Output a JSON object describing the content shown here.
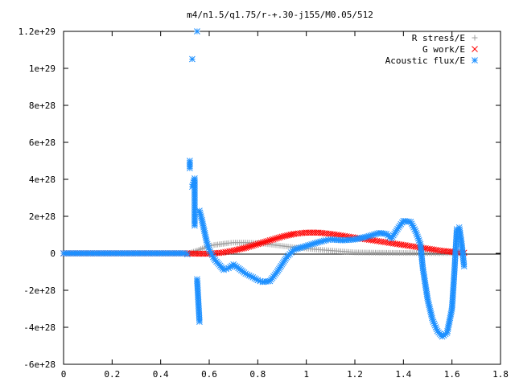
{
  "chart_data": {
    "type": "scatter",
    "title": "m4/n1.5/q1.75/r-+.30-j155/M0.05/512",
    "xlabel": "",
    "ylabel": "",
    "xlim": [
      0,
      1.8
    ],
    "ylim": [
      -6e+28,
      1.2e+29
    ],
    "grid": false,
    "legend_position": "top-right",
    "x_ticks": [
      "0",
      "0.2",
      "0.4",
      "0.6",
      "0.8",
      "1",
      "1.2",
      "1.4",
      "1.6",
      "1.8"
    ],
    "y_ticks": [
      "-6e+28",
      "-4e+28",
      "-2e+28",
      "0",
      "2e+28",
      "4e+28",
      "6e+28",
      "8e+28",
      "1e+29",
      "1.2e+29"
    ],
    "series": [
      {
        "name": "R stress/E",
        "marker": "+",
        "color": "#a0a0a0",
        "x": [
          0.0,
          0.1,
          0.2,
          0.3,
          0.4,
          0.5,
          0.52,
          0.55,
          0.58,
          0.6,
          0.62,
          0.65,
          0.68,
          0.7,
          0.75,
          0.8,
          0.85,
          0.9,
          0.95,
          1.0,
          1.05,
          1.1,
          1.15,
          1.2,
          1.3,
          1.4,
          1.5,
          1.55,
          1.6,
          1.65
        ],
        "y": [
          0,
          0,
          0,
          0,
          0,
          0,
          2e+26,
          1.5e+27,
          3e+27,
          4e+27,
          4.5e+27,
          5e+27,
          5.5e+27,
          5.8e+27,
          5.8e+27,
          5.5e+27,
          4.8e+27,
          4e+27,
          3.2e+27,
          2.6e+27,
          2e+27,
          1.5e+27,
          1e+27,
          5e+26,
          3e+26,
          2e+26,
          1e+26,
          1e+26,
          1e+26,
          0
        ]
      },
      {
        "name": "G work/E",
        "marker": "x",
        "color": "#ff0000",
        "x": [
          0.0,
          0.1,
          0.2,
          0.3,
          0.4,
          0.5,
          0.55,
          0.6,
          0.65,
          0.7,
          0.75,
          0.8,
          0.85,
          0.9,
          0.95,
          1.0,
          1.05,
          1.1,
          1.15,
          1.2,
          1.25,
          1.3,
          1.35,
          1.4,
          1.45,
          1.5,
          1.55,
          1.6,
          1.65
        ],
        "y": [
          0,
          0,
          0,
          0,
          0,
          0,
          -2e+26,
          -2e+26,
          3e+26,
          1.5e+27,
          3e+27,
          5e+27,
          7e+27,
          9e+27,
          1.05e+28,
          1.12e+28,
          1.12e+28,
          1.05e+28,
          9.5e+27,
          8.5e+27,
          7.5e+27,
          6.5e+27,
          5.5e+27,
          4.5e+27,
          3.5e+27,
          2.5e+27,
          1.5e+27,
          8e+26,
          3e+26
        ]
      },
      {
        "name": "Acoustic flux/E",
        "marker": "*",
        "color": "#1e90ff",
        "x": [
          0.0,
          0.1,
          0.2,
          0.3,
          0.4,
          0.5,
          0.51,
          0.52,
          0.52,
          0.53,
          0.53,
          0.54,
          0.54,
          0.55,
          0.55,
          0.56,
          0.56,
          0.57,
          0.58,
          0.59,
          0.6,
          0.62,
          0.64,
          0.66,
          0.68,
          0.7,
          0.72,
          0.75,
          0.78,
          0.8,
          0.82,
          0.85,
          0.88,
          0.9,
          0.92,
          0.95,
          1.0,
          1.05,
          1.08,
          1.1,
          1.15,
          1.2,
          1.25,
          1.3,
          1.33,
          1.35,
          1.38,
          1.4,
          1.43,
          1.45,
          1.47,
          1.48,
          1.5,
          1.52,
          1.54,
          1.56,
          1.58,
          1.6,
          1.61,
          1.62,
          1.63,
          1.64,
          1.65
        ],
        "y": [
          0,
          0,
          0,
          0,
          0,
          0,
          -5e+26,
          5e+28,
          4.6e+28,
          1.05e+29,
          3.6e+28,
          4.05e+28,
          1.5e+28,
          1.2e+29,
          -1.4e+28,
          -3.7e+28,
          2.3e+28,
          1.8e+28,
          1.2e+28,
          6e+27,
          2e+27,
          -3e+27,
          -6e+27,
          -9e+27,
          -8e+27,
          -6e+27,
          -8e+27,
          -1.1e+28,
          -1.3e+28,
          -1.45e+28,
          -1.55e+28,
          -1.5e+28,
          -1e+28,
          -6e+27,
          -2e+27,
          2e+27,
          4e+27,
          6e+27,
          7e+27,
          7.5e+27,
          7e+27,
          7.5e+27,
          9e+27,
          1.1e+28,
          1.05e+28,
          8e+27,
          1.4e+28,
          1.75e+28,
          1.7e+28,
          1.2e+28,
          5e+27,
          -8e+27,
          -2.5e+28,
          -3.6e+28,
          -4.2e+28,
          -4.5e+28,
          -4.3e+28,
          -3e+28,
          -1e+28,
          1.3e+28,
          1.4e+28,
          5e+27,
          -7e+27
        ]
      }
    ]
  }
}
